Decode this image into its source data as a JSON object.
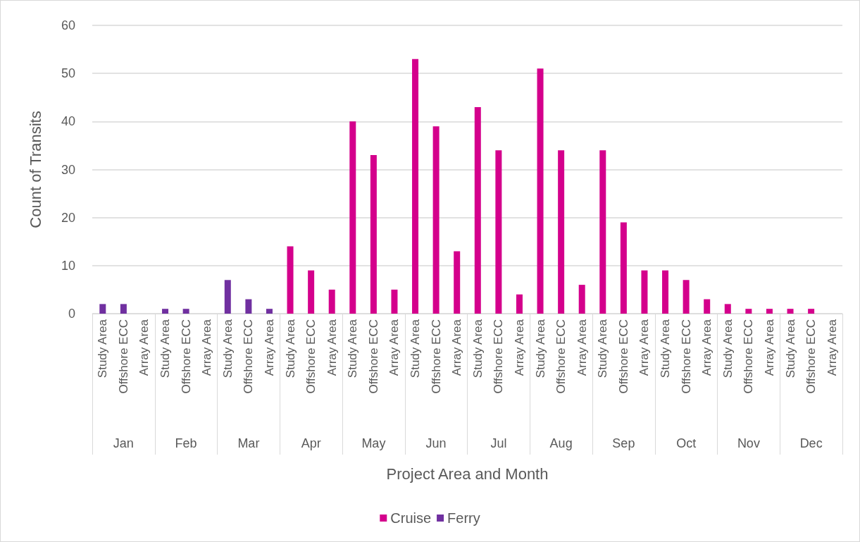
{
  "chart_data": {
    "type": "bar",
    "xlabel": "Project Area and Month",
    "ylabel": "Count of Transits",
    "categories": [
      "Study Area",
      "Offshore ECC",
      "Array Area",
      "Study Area",
      "Offshore ECC",
      "Array Area",
      "Study Area",
      "Offshore ECC",
      "Array Area",
      "Study Area",
      "Offshore ECC",
      "Array Area",
      "Study Area",
      "Offshore ECC",
      "Array Area",
      "Study Area",
      "Offshore ECC",
      "Array Area",
      "Study Area",
      "Offshore ECC",
      "Array Area",
      "Study Area",
      "Offshore ECC",
      "Array Area",
      "Study Area",
      "Offshore ECC",
      "Array Area",
      "Study Area",
      "Offshore ECC",
      "Array Area",
      "Study Area",
      "Offshore ECC",
      "Array Area",
      "Study Area",
      "Offshore ECC",
      "Array Area"
    ],
    "annotations": [
      "Jan",
      "Feb",
      "Mar",
      "Apr",
      "May",
      "Jun",
      "Jul",
      "Aug",
      "Sep",
      "Oct",
      "Nov",
      "Dec"
    ],
    "series": [
      {
        "name": "Cruise",
        "color": "#d4008c",
        "values": [
          null,
          null,
          null,
          null,
          null,
          null,
          null,
          null,
          null,
          14,
          9,
          5,
          40,
          33,
          5,
          53,
          39,
          13,
          43,
          34,
          4,
          51,
          34,
          6,
          34,
          19,
          9,
          9,
          7,
          3,
          2,
          1,
          1,
          1,
          1,
          null
        ]
      },
      {
        "name": "Ferry",
        "color": "#7030a0",
        "values": [
          2,
          2,
          null,
          1,
          1,
          null,
          7,
          3,
          1,
          null,
          null,
          null,
          null,
          null,
          null,
          null,
          null,
          null,
          null,
          null,
          null,
          null,
          null,
          null,
          null,
          null,
          null,
          null,
          null,
          null,
          null,
          null,
          null,
          null,
          null,
          null
        ]
      }
    ],
    "stacked": true,
    "ylim": [
      0,
      60
    ],
    "yticks": [
      0,
      10,
      20,
      30,
      40,
      50,
      60
    ],
    "grid": "y",
    "legend": "bottom"
  }
}
